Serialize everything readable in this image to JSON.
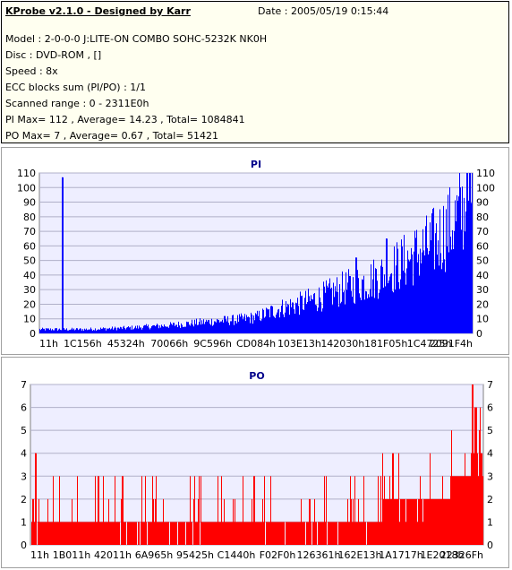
{
  "header": {
    "app_title": "KProbe v2.1.0 - Designed by Karr",
    "date": "Date : 2005/05/19 0:15:44",
    "lines": [
      "Model : 2-0-0-0 J:LITE-ON COMBO SOHC-5232K NK0H",
      "Disc : DVD-ROM ,  []",
      "Speed : 8x",
      "ECC blocks sum (PI/PO) : 1/1",
      "Scanned range : 0 - 2311E0h",
      "PI Max= 112 , Average= 14.23 , Total= 1084841",
      "PO Max= 7 , Average= 0.67 , Total= 51421"
    ]
  },
  "colors": {
    "pi_bar": "#0000ff",
    "po_bar": "#ff0000",
    "plot_bg": "#eeeeff",
    "grid": "#b0b0c8",
    "title": "#00008b",
    "info_bg": "#fffff0"
  },
  "chart_data": [
    {
      "type": "bar",
      "title": "PI",
      "grid": true,
      "ylim": [
        0,
        110
      ],
      "yticks": [
        0,
        10,
        20,
        30,
        40,
        50,
        60,
        70,
        80,
        90,
        100,
        110
      ],
      "xticks": [
        "11h",
        "1C156h",
        "45324h",
        "70066h",
        "9C596h",
        "CD084h",
        "103E13h",
        "142030h",
        "181F05h",
        "1C4725h",
        "2091F4h"
      ],
      "x_range": [
        "0h",
        "2311E0h"
      ],
      "envelope_x_frac": [
        0.0,
        0.05,
        0.1,
        0.2,
        0.3,
        0.4,
        0.45,
        0.5,
        0.55,
        0.6,
        0.65,
        0.7,
        0.75,
        0.8,
        0.85,
        0.9,
        0.95,
        1.0
      ],
      "envelope_y": [
        3,
        3,
        3,
        4,
        6,
        9,
        10,
        12,
        18,
        22,
        27,
        33,
        38,
        45,
        55,
        65,
        80,
        102
      ],
      "spikes": [
        {
          "x_frac": 0.052,
          "y": 107
        },
        {
          "x_frac": 0.052,
          "y": 80
        },
        {
          "x_frac": 0.73,
          "y": 52
        },
        {
          "x_frac": 0.8,
          "y": 65
        },
        {
          "x_frac": 0.985,
          "y": 112
        }
      ],
      "average": 14.23,
      "max": 112
    },
    {
      "type": "bar",
      "title": "PO",
      "grid": true,
      "ylim": [
        0,
        7
      ],
      "yticks": [
        0,
        1,
        2,
        3,
        4,
        5,
        6,
        7
      ],
      "xticks": [
        "11h",
        "1B011h",
        "42011h",
        "6A965h",
        "95425h",
        "C1440h",
        "F02F0h",
        "126361h",
        "162E13h",
        "1A1717h",
        "1E2018h",
        "22326Fh"
      ],
      "x_range": [
        "0h",
        "2311E0h"
      ],
      "envelope_x_frac": [
        0.0,
        0.1,
        0.2,
        0.3,
        0.4,
        0.5,
        0.6,
        0.7,
        0.75,
        0.8,
        0.85,
        0.9,
        0.95,
        1.0
      ],
      "envelope_y": [
        1,
        1,
        1,
        1,
        1,
        1,
        1,
        1,
        1,
        2,
        2,
        2,
        3,
        4
      ],
      "spikes": [
        {
          "x_frac": 0.01,
          "y": 4
        },
        {
          "x_frac": 0.975,
          "y": 7
        },
        {
          "x_frac": 0.98,
          "y": 6
        },
        {
          "x_frac": 0.99,
          "y": 5
        }
      ],
      "average": 0.67,
      "max": 7
    }
  ]
}
